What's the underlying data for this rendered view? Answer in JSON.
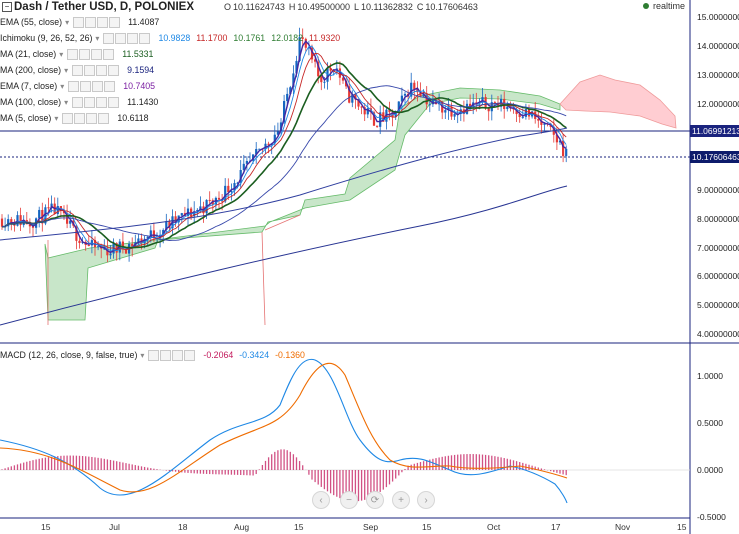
{
  "header": {
    "title": "Dash / Tether USD, D, POLONIEX",
    "ohlc": [
      {
        "label": "O",
        "value": "10.11624743"
      },
      {
        "label": "H",
        "value": "10.49500000"
      },
      {
        "label": "L",
        "value": "10.11362832"
      },
      {
        "label": "C",
        "value": "10.17606463"
      }
    ],
    "realtime": "realtime"
  },
  "indicators": [
    {
      "name": "EMA (55, close)",
      "values": [
        {
          "v": "11.4087",
          "color": "#222222"
        }
      ]
    },
    {
      "name": "Ichimoku (9, 26, 52, 26)",
      "values": [
        {
          "v": "10.9828",
          "color": "#1e88e5"
        },
        {
          "v": "11.1700",
          "color": "#c62828"
        },
        {
          "v": "10.1761",
          "color": "#2e7d32"
        },
        {
          "v": "12.0182",
          "color": "#2e7d32"
        },
        {
          "v": "11.9320",
          "color": "#c62828"
        }
      ]
    },
    {
      "name": "MA (21, close)",
      "values": [
        {
          "v": "11.5331",
          "color": "#1b5e20"
        }
      ]
    },
    {
      "name": "MA (200, close)",
      "values": [
        {
          "v": "9.1594",
          "color": "#1a237e"
        }
      ]
    },
    {
      "name": "EMA (7, close)",
      "values": [
        {
          "v": "10.7405",
          "color": "#7b1fa2"
        }
      ]
    },
    {
      "name": "MA (100, close)",
      "values": [
        {
          "v": "11.1430",
          "color": "#222222"
        }
      ]
    },
    {
      "name": "MA (5, close)",
      "values": [
        {
          "v": "10.6118",
          "color": "#222222"
        }
      ]
    }
  ],
  "macd": {
    "name": "MACD (12, 26, close, 9, false, true)",
    "values": [
      {
        "v": "-0.2064",
        "color": "#c2185b"
      },
      {
        "v": "-0.3424",
        "color": "#1e88e5"
      },
      {
        "v": "-0.1360",
        "color": "#ef6c00"
      }
    ],
    "axis": [
      "1.0000",
      "0.5000",
      "0.0000",
      "-0.5000"
    ]
  },
  "price_axis": [
    "15.00000000",
    "14.00000000",
    "13.00000000",
    "12.00000000",
    "9.00000000",
    "8.00000000",
    "7.00000000",
    "6.00000000",
    "5.00000000",
    "4.00000000"
  ],
  "price_tags": [
    "11.06991213",
    "10.17606463"
  ],
  "date_labels": [
    "15",
    "Jul",
    "18",
    "Aug",
    "15",
    "Sep",
    "15",
    "Oct",
    "17",
    "Nov",
    "15"
  ],
  "colors": {
    "up": "#1565c0",
    "down": "#e53935",
    "cloud_up": "#c8e6c9",
    "cloud_down": "#ffcdd2"
  },
  "icons": {
    "collapse": "minus-square-icon",
    "nav_left": "chevron-left-icon",
    "nav_zoom_out": "minus-icon",
    "nav_zoom_in": "plus-icon",
    "nav_right": "chevron-right-icon"
  }
}
